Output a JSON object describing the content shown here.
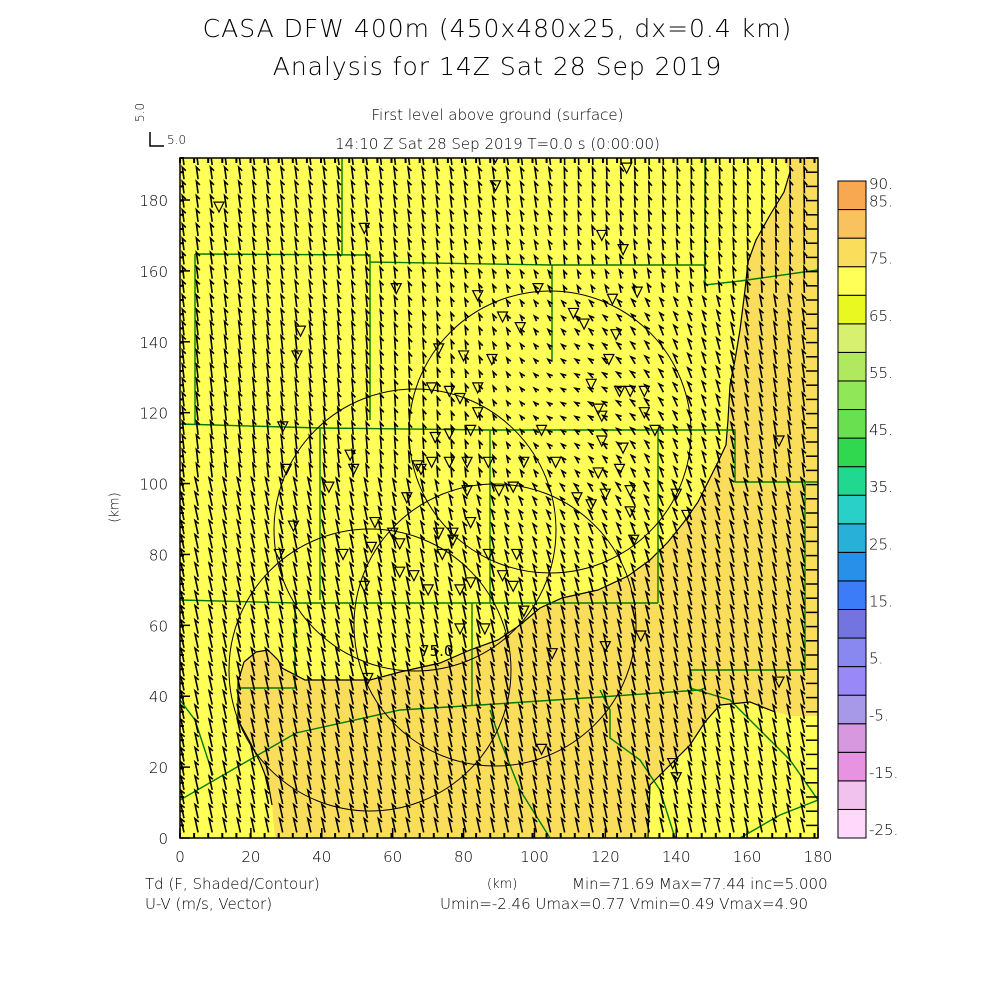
{
  "header": {
    "title_line1": "CASA DFW 400m (450x480x25, dx=0.4 km)",
    "title_line2": "Analysis for 14Z Sat 28 Sep 2019",
    "subtitle_level": "First level above ground (surface)",
    "subtitle_time": "14:10 Z Sat 28 Sep 2019    T=0.0 s (0:00:00)",
    "reference_vector_label": "5.0",
    "reference_vector_label2": "5.0"
  },
  "footer": {
    "field1": "Td (F, Shaded/Contour)",
    "field2": "U-V (m/s, Vector)",
    "stats1": "Min=71.69 Max=77.44 inc=5.000",
    "stats2": "Umin=-2.46 Umax=0.77 Vmin=0.49 Vmax=4.90"
  },
  "chart_data": {
    "type": "heatmap",
    "title": "CASA DFW 400m (450x480x25, dx=0.4 km) Analysis for 14Z Sat 28 Sep 2019",
    "xlabel": "(km)",
    "ylabel": "(km)",
    "xlim": [
      0,
      180
    ],
    "ylim": [
      0,
      192
    ],
    "x_ticks": [
      "0",
      "20",
      "40",
      "60",
      "80",
      "100",
      "120",
      "140",
      "160",
      "180"
    ],
    "y_ticks": [
      "0",
      "20",
      "40",
      "60",
      "80",
      "100",
      "120",
      "140",
      "160",
      "180"
    ],
    "field": "Td (F)",
    "field_min": 71.69,
    "field_max": 77.44,
    "contour_interval": 5.0,
    "contour_labels": [
      "75.0"
    ],
    "colorbar": {
      "bounds": [
        -25,
        -20,
        -15,
        -10,
        -5,
        0,
        5,
        10,
        15,
        20,
        25,
        30,
        35,
        40,
        45,
        50,
        55,
        60,
        65,
        70,
        75,
        80,
        85,
        90
      ],
      "labels": [
        "90.",
        "85.",
        "75.",
        "65.",
        "55.",
        "45.",
        "35.",
        "25.",
        "15.",
        "5.",
        "-5.",
        "-15.",
        "-25."
      ],
      "label_values": [
        90,
        85,
        75,
        65,
        55,
        45,
        35,
        25,
        15,
        5,
        -5,
        -15,
        -25
      ],
      "colors": [
        "#ffd8fc",
        "#f2c2ee",
        "#e892e2",
        "#d898e0",
        "#a898e8",
        "#9888f8",
        "#8888f0",
        "#7474e0",
        "#3c7cf8",
        "#2890e8",
        "#28b0d8",
        "#28d0c8",
        "#20d890",
        "#30d850",
        "#68e050",
        "#90e858",
        "#b0e860",
        "#d8f070",
        "#e8f820",
        "#ffff58",
        "#fbdd5c",
        "#f8c260",
        "#f8a850"
      ]
    },
    "wind": {
      "umin": -2.46,
      "umax": 0.77,
      "vmin": 0.49,
      "vmax": 4.9,
      "reference_ms": 5.0
    },
    "stations_km": [
      [
        11,
        178
      ],
      [
        52,
        172
      ],
      [
        61,
        155
      ],
      [
        89,
        192
      ],
      [
        89,
        184
      ],
      [
        126,
        189
      ],
      [
        119,
        170
      ],
      [
        125,
        166
      ],
      [
        84,
        153
      ],
      [
        101,
        155
      ],
      [
        34,
        143
      ],
      [
        33,
        136
      ],
      [
        73,
        138
      ],
      [
        80,
        136
      ],
      [
        88,
        135
      ],
      [
        91,
        147
      ],
      [
        96,
        144
      ],
      [
        111,
        148
      ],
      [
        114,
        145
      ],
      [
        122,
        152
      ],
      [
        129,
        154
      ],
      [
        123,
        142
      ],
      [
        121,
        135
      ],
      [
        71,
        127
      ],
      [
        76,
        126
      ],
      [
        79,
        124
      ],
      [
        84,
        127
      ],
      [
        116,
        128
      ],
      [
        118,
        121
      ],
      [
        119,
        119
      ],
      [
        124,
        126
      ],
      [
        127,
        126
      ],
      [
        131,
        126
      ],
      [
        131,
        120
      ],
      [
        84,
        120
      ],
      [
        29,
        116
      ],
      [
        72,
        113
      ],
      [
        76,
        114
      ],
      [
        82,
        115
      ],
      [
        102,
        115
      ],
      [
        119,
        112
      ],
      [
        125,
        110
      ],
      [
        134,
        115
      ],
      [
        48,
        108
      ],
      [
        67,
        105
      ],
      [
        68,
        104
      ],
      [
        71,
        106
      ],
      [
        76,
        106
      ],
      [
        81,
        106
      ],
      [
        87,
        106
      ],
      [
        106,
        106
      ],
      [
        97,
        106
      ],
      [
        118,
        103
      ],
      [
        124,
        104
      ],
      [
        127,
        98
      ],
      [
        30,
        104
      ],
      [
        49,
        104
      ],
      [
        42,
        99
      ],
      [
        64,
        96
      ],
      [
        81,
        98
      ],
      [
        90,
        98
      ],
      [
        94,
        99
      ],
      [
        112,
        96
      ],
      [
        120,
        97
      ],
      [
        127,
        92
      ],
      [
        116,
        94
      ],
      [
        140,
        97
      ],
      [
        143,
        91
      ],
      [
        55,
        89
      ],
      [
        32,
        88
      ],
      [
        60,
        86
      ],
      [
        73,
        86
      ],
      [
        77,
        86
      ],
      [
        82,
        89
      ],
      [
        77,
        84
      ],
      [
        62,
        83
      ],
      [
        128,
        84
      ],
      [
        28,
        80
      ],
      [
        46,
        80
      ],
      [
        54,
        82
      ],
      [
        74,
        80
      ],
      [
        87,
        80
      ],
      [
        95,
        80
      ],
      [
        62,
        75
      ],
      [
        66,
        74
      ],
      [
        52,
        71
      ],
      [
        70,
        70
      ],
      [
        79,
        70
      ],
      [
        82,
        72
      ],
      [
        91,
        74
      ],
      [
        94,
        71
      ],
      [
        97,
        64
      ],
      [
        79,
        59
      ],
      [
        86,
        59
      ],
      [
        105,
        52
      ],
      [
        120,
        54
      ],
      [
        130,
        57
      ],
      [
        53,
        45
      ],
      [
        102,
        25
      ],
      [
        139,
        21
      ],
      [
        140,
        17
      ],
      [
        169,
        44
      ],
      [
        169,
        112
      ]
    ]
  }
}
